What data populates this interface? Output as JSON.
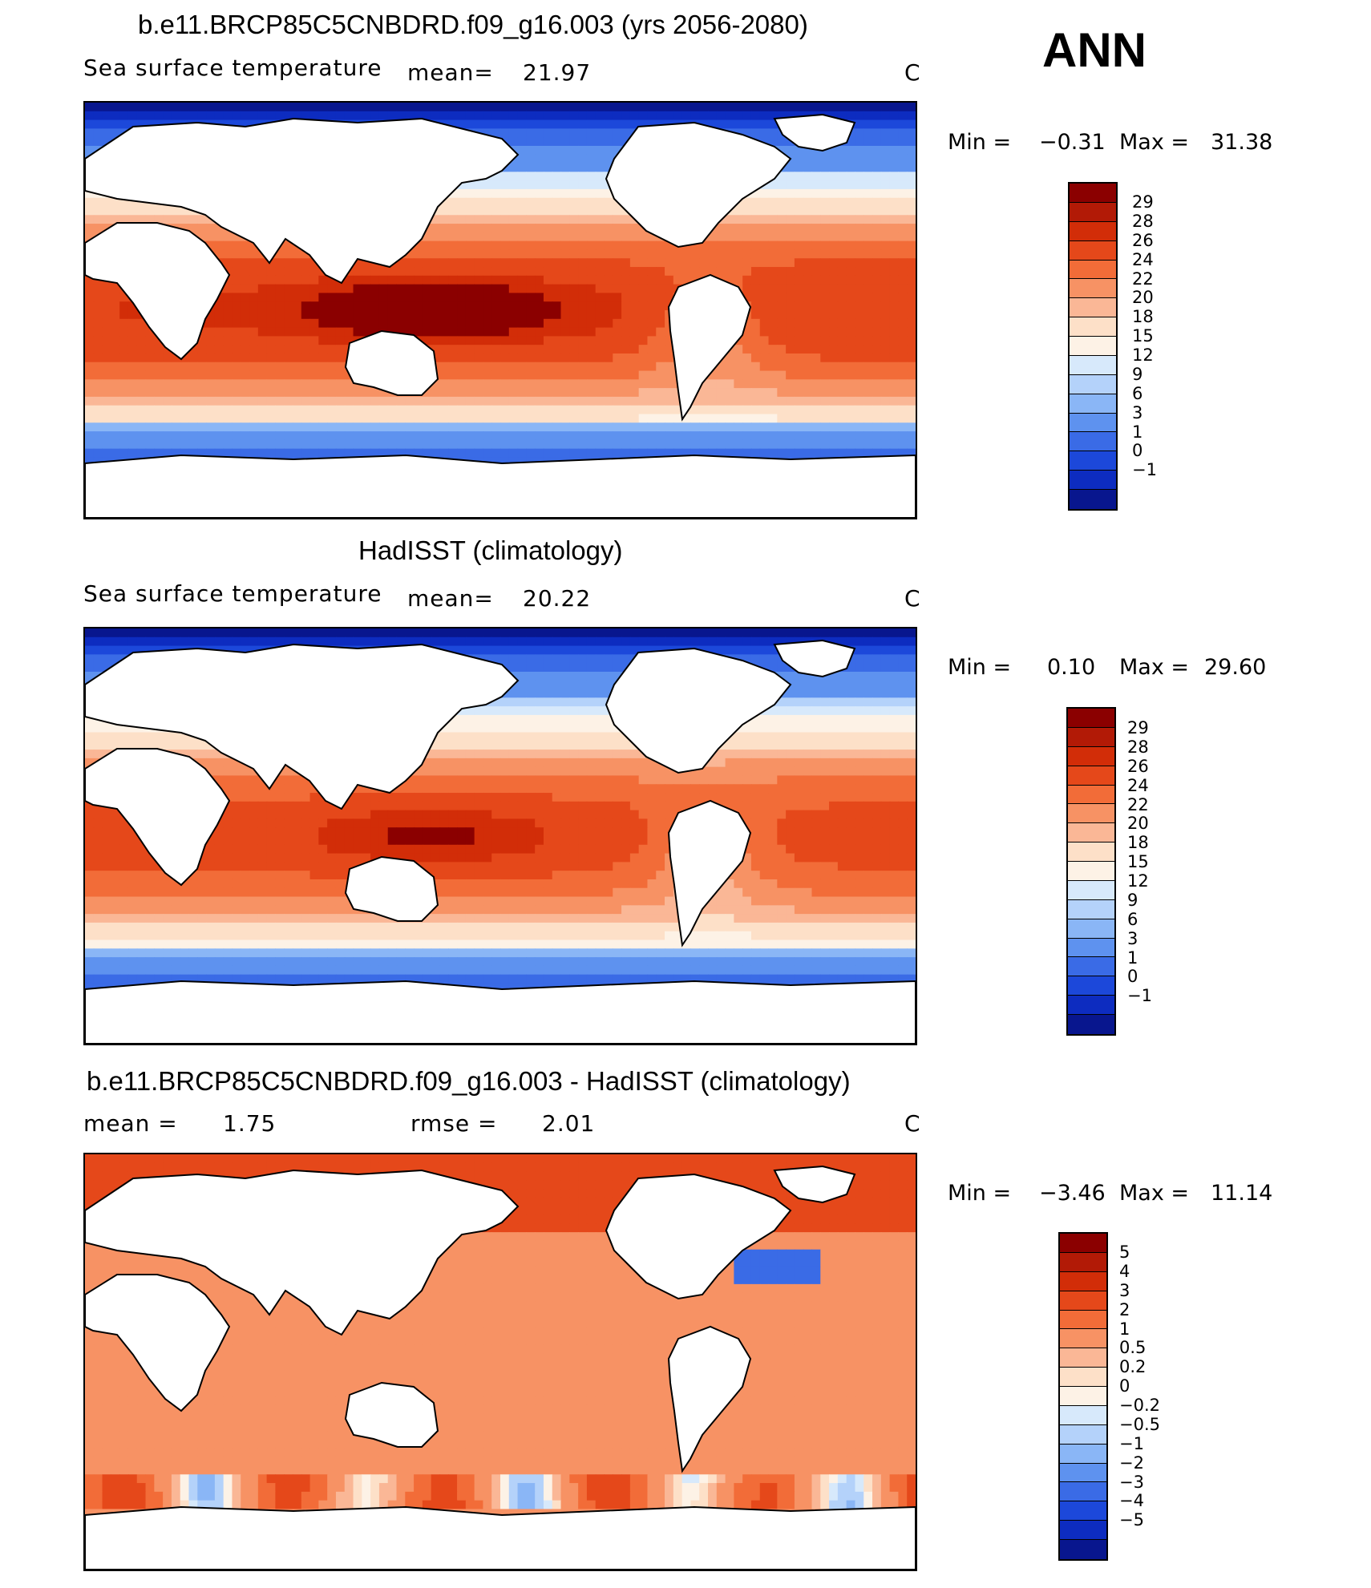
{
  "season": "ANN",
  "chart_data": [
    {
      "type": "heatmap",
      "title": "b.e11.BRCP85C5CNBDRD.f09_g16.003 (yrs 2056-2080)",
      "left_label": "Sea surface temperature",
      "stat_label": "mean=",
      "stat_value": "21.97",
      "units": "C",
      "min_label": "Min =",
      "min_value": "−0.31",
      "max_label": "Max =",
      "max_value": "31.38",
      "colorbar_labels": [
        "29",
        "28",
        "26",
        "24",
        "22",
        "20",
        "18",
        "15",
        "12",
        "9",
        "6",
        "3",
        "1",
        "0",
        "−1"
      ],
      "colorbar_colors": [
        "#8b0000",
        "#b21a06",
        "#d22d08",
        "#e5481a",
        "#f26c38",
        "#f79264",
        "#fab796",
        "#fde0c8",
        "#fdf2e6",
        "#d7e9fb",
        "#b4d2fa",
        "#8ab6f6",
        "#5e92ef",
        "#3a6be6",
        "#1c48da",
        "#0d2cc0",
        "#08168e"
      ]
    },
    {
      "type": "heatmap",
      "title": "HadISST (climatology)",
      "left_label": "Sea surface temperature",
      "stat_label": "mean=",
      "stat_value": "20.22",
      "units": "C",
      "min_label": "Min =",
      "min_value": "0.10",
      "max_label": "Max =",
      "max_value": "29.60",
      "colorbar_labels": [
        "29",
        "28",
        "26",
        "24",
        "22",
        "20",
        "18",
        "15",
        "12",
        "9",
        "6",
        "3",
        "1",
        "0",
        "−1"
      ],
      "colorbar_colors": [
        "#8b0000",
        "#b21a06",
        "#d22d08",
        "#e5481a",
        "#f26c38",
        "#f79264",
        "#fab796",
        "#fde0c8",
        "#fdf2e6",
        "#d7e9fb",
        "#b4d2fa",
        "#8ab6f6",
        "#5e92ef",
        "#3a6be6",
        "#1c48da",
        "#0d2cc0",
        "#08168e"
      ]
    },
    {
      "type": "heatmap",
      "title": "b.e11.BRCP85C5CNBDRD.f09_g16.003 - HadISST (climatology)",
      "left_label": "mean =",
      "left_value": "1.75",
      "stat_label": "rmse =",
      "stat_value": "2.01",
      "units": "C",
      "min_label": "Min =",
      "min_value": "−3.46",
      "max_label": "Max =",
      "max_value": "11.14",
      "colorbar_labels": [
        "5",
        "4",
        "3",
        "2",
        "1",
        "0.5",
        "0.2",
        "0",
        "−0.2",
        "−0.5",
        "−1",
        "−2",
        "−3",
        "−4",
        "−5"
      ],
      "colorbar_colors": [
        "#8b0000",
        "#b21a06",
        "#d22d08",
        "#e5481a",
        "#f26c38",
        "#f79264",
        "#fab796",
        "#fde0c8",
        "#fdf2e6",
        "#d7e9fb",
        "#b4d2fa",
        "#8ab6f6",
        "#5e92ef",
        "#3a6be6",
        "#1c48da",
        "#0d2cc0",
        "#08168e"
      ]
    }
  ]
}
